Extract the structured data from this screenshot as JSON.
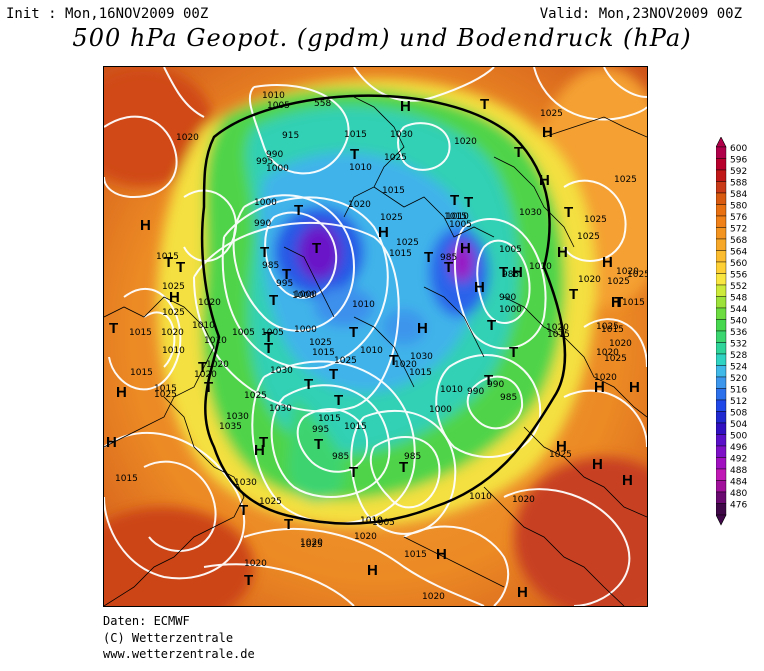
{
  "header": {
    "init": "Init : Mon,16NOV2009 00Z",
    "valid": "Valid: Mon,23NOV2009 00Z",
    "title": "500 hPa Geopot. (gpdm) und Bodendruck (hPa)"
  },
  "legend": {
    "values": [
      "600",
      "596",
      "592",
      "588",
      "584",
      "580",
      "576",
      "572",
      "568",
      "564",
      "560",
      "556",
      "552",
      "548",
      "544",
      "540",
      "536",
      "532",
      "528",
      "524",
      "520",
      "516",
      "512",
      "508",
      "504",
      "500",
      "496",
      "492",
      "488",
      "484",
      "480",
      "476"
    ],
    "colors": [
      "#b0004a",
      "#b8002c",
      "#c01818",
      "#c83a18",
      "#d85a10",
      "#e87010",
      "#f08018",
      "#f49420",
      "#f8a828",
      "#fcbc30",
      "#fed036",
      "#fae640",
      "#cdea3a",
      "#9ce23a",
      "#6cdc40",
      "#48d850",
      "#3cd670",
      "#2ed49a",
      "#30d2c2",
      "#40b8e8",
      "#3c96ec",
      "#2c70ec",
      "#2048e8",
      "#2028d0",
      "#3010c0",
      "#5a10c8",
      "#7e10c8",
      "#a010c0",
      "#c018b4",
      "#a0109a",
      "#6a0a70",
      "#400848"
    ]
  },
  "map": {
    "high_labels": [
      "H",
      "H",
      "H",
      "H",
      "H",
      "H",
      "H",
      "H",
      "H",
      "H",
      "H",
      "H",
      "H",
      "H",
      "H",
      "H",
      "H",
      "H",
      "H",
      "H",
      "H",
      "H",
      "H",
      "H"
    ],
    "low_labels": [
      "T",
      "T",
      "T",
      "T",
      "T",
      "T",
      "T",
      "T",
      "T",
      "T",
      "T",
      "T",
      "T",
      "T",
      "T",
      "T",
      "T",
      "T",
      "T",
      "T",
      "T",
      "T",
      "T",
      "T",
      "T",
      "T",
      "T",
      "T",
      "T",
      "T",
      "T",
      "T",
      "T",
      "T",
      "T",
      "T",
      "T",
      "T"
    ],
    "isobar_labels": [
      "1010",
      "1005",
      "558",
      "915",
      "990",
      "995",
      "1000",
      "1020",
      "1015",
      "1030",
      "1025",
      "1020",
      "1025",
      "1015",
      "1010",
      "1025",
      "1000",
      "990",
      "985",
      "995",
      "1000",
      "1020",
      "1025",
      "1015",
      "1005",
      "1010",
      "1020",
      "1015",
      "1010",
      "1005",
      "1000",
      "985",
      "1025",
      "1030",
      "1025",
      "1010",
      "1020",
      "1025",
      "1000",
      "990",
      "985",
      "1020",
      "1010",
      "1010",
      "1020",
      "1015",
      "1005",
      "1010",
      "1020",
      "1015",
      "1025",
      "1030",
      "1035",
      "1025",
      "1015",
      "1025",
      "1010",
      "1005",
      "1000",
      "990",
      "985",
      "995",
      "985",
      "1015",
      "1030",
      "1015",
      "1020",
      "1010",
      "1000",
      "990",
      "985",
      "1005",
      "1020",
      "1025",
      "1010",
      "1020",
      "1030",
      "1025",
      "1020",
      "1015",
      "1025",
      "1015",
      "1010",
      "1020",
      "1025",
      "1020",
      "1025",
      "1020",
      "1025",
      "1015",
      "1025",
      "1015",
      "1020",
      "1025",
      "1020",
      "1015",
      "1030",
      "1020",
      "1025",
      "1020",
      "1025",
      "1015",
      "1015",
      "1030",
      "1010",
      "1015"
    ]
  },
  "credits": {
    "line1": "Daten: ECMWF",
    "line2": "(C) Wetterzentrale",
    "line3": "www.wetterzentrale.de"
  }
}
